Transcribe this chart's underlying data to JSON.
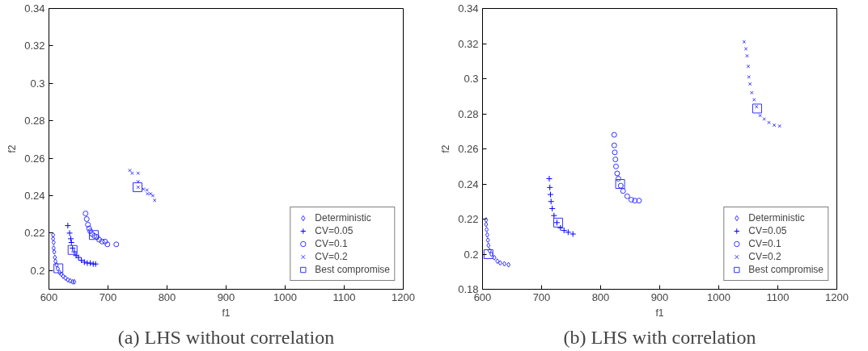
{
  "chart_data": [
    {
      "type": "scatter",
      "title": "(a) LHS without correlation",
      "xlabel": "f1",
      "ylabel": "f2",
      "xlim": [
        600,
        1200
      ],
      "ylim": [
        0.19,
        0.34
      ],
      "xticks": [
        600,
        700,
        800,
        900,
        1000,
        1100,
        1200
      ],
      "yticks": [
        0.2,
        0.22,
        0.24,
        0.26,
        0.28,
        0.3,
        0.32,
        0.34
      ],
      "grid": false,
      "legend": "bottom right",
      "series": [
        {
          "name": "Deterministic",
          "color": "#3333ff",
          "marker": "diamond",
          "x": [
            607,
            607,
            608,
            608,
            609,
            610,
            611,
            613,
            615,
            618,
            621,
            624,
            628,
            632,
            636,
            640,
            643
          ],
          "values": [
            0.219,
            0.217,
            0.215,
            0.212,
            0.21,
            0.207,
            0.205,
            0.203,
            0.201,
            0.199,
            0.198,
            0.197,
            0.196,
            0.195,
            0.1945,
            0.194,
            0.194
          ]
        },
        {
          "name": "CV=0.05",
          "color": "#0000ff",
          "marker": "cross",
          "x": [
            632,
            635,
            637,
            638,
            640,
            643,
            646,
            650,
            655,
            660,
            665,
            670,
            675,
            679
          ],
          "values": [
            0.224,
            0.22,
            0.217,
            0.215,
            0.212,
            0.21,
            0.208,
            0.207,
            0.2055,
            0.2045,
            0.204,
            0.204,
            0.2035,
            0.2035
          ]
        },
        {
          "name": "CV=0.1",
          "color": "#3333ff",
          "marker": "circle",
          "x": [
            662,
            664,
            666,
            668,
            670,
            673,
            677,
            681,
            685,
            690,
            695,
            699,
            714
          ],
          "values": [
            0.2305,
            0.2275,
            0.2245,
            0.2225,
            0.221,
            0.2195,
            0.2185,
            0.218,
            0.2165,
            0.2155,
            0.2155,
            0.214,
            0.214
          ]
        },
        {
          "name": "CV=0.2",
          "color": "#3333ff",
          "marker": "x",
          "x": [
            737,
            741,
            751,
            751,
            751,
            760,
            766,
            767,
            772,
            776,
            779
          ],
          "values": [
            0.2535,
            0.252,
            0.252,
            0.2475,
            0.2445,
            0.2435,
            0.243,
            0.241,
            0.241,
            0.24,
            0.2375
          ]
        },
        {
          "name": "Best compromise",
          "color": "#3333ff",
          "marker": "square",
          "x": [
            616,
            640,
            676,
            750
          ],
          "values": [
            0.2012,
            0.211,
            0.219,
            0.2445
          ]
        }
      ]
    },
    {
      "type": "scatter",
      "title": "(b) LHS with correlation",
      "xlabel": "f1",
      "ylabel": "f2",
      "xlim": [
        600,
        1200
      ],
      "ylim": [
        0.18,
        0.34
      ],
      "xticks": [
        600,
        700,
        800,
        900,
        1000,
        1100,
        1200
      ],
      "yticks": [
        0.18,
        0.2,
        0.22,
        0.24,
        0.26,
        0.28,
        0.3,
        0.32,
        0.34
      ],
      "grid": false,
      "legend": "bottom right",
      "series": [
        {
          "name": "Deterministic",
          "color": "#3333ff",
          "marker": "diamond",
          "x": [
            606,
            606,
            607,
            608,
            609,
            610,
            612,
            615,
            620,
            625,
            630,
            637,
            644
          ],
          "values": [
            0.2195,
            0.217,
            0.214,
            0.211,
            0.208,
            0.205,
            0.202,
            0.2,
            0.198,
            0.196,
            0.195,
            0.1945,
            0.194
          ]
        },
        {
          "name": "CV=0.05",
          "color": "#0000ff",
          "marker": "cross",
          "x": [
            713,
            714,
            715,
            716,
            718,
            721,
            726,
            732,
            738,
            745,
            753
          ],
          "values": [
            0.243,
            0.238,
            0.234,
            0.23,
            0.226,
            0.222,
            0.218,
            0.215,
            0.2135,
            0.2125,
            0.2115
          ]
        },
        {
          "name": "CV=0.1",
          "color": "#3333ff",
          "marker": "circle",
          "x": [
            823,
            823,
            824,
            825,
            826,
            828,
            830,
            834,
            838,
            845,
            852,
            858,
            865
          ],
          "values": [
            0.268,
            0.262,
            0.258,
            0.254,
            0.25,
            0.246,
            0.243,
            0.239,
            0.236,
            0.233,
            0.231,
            0.2305,
            0.2305
          ]
        },
        {
          "name": "CV=0.2",
          "color": "#3333ff",
          "marker": "x",
          "x": [
            1043,
            1046,
            1048,
            1050,
            1051,
            1053,
            1056,
            1060,
            1064,
            1070,
            1077,
            1085,
            1094,
            1103
          ],
          "values": [
            0.321,
            0.317,
            0.313,
            0.307,
            0.301,
            0.297,
            0.292,
            0.288,
            0.284,
            0.279,
            0.277,
            0.275,
            0.2735,
            0.273
          ]
        },
        {
          "name": "Best compromise",
          "color": "#3333ff",
          "marker": "square",
          "x": [
            610,
            728,
            833,
            1065
          ],
          "values": [
            0.2,
            0.218,
            0.24,
            0.283
          ]
        }
      ]
    }
  ]
}
